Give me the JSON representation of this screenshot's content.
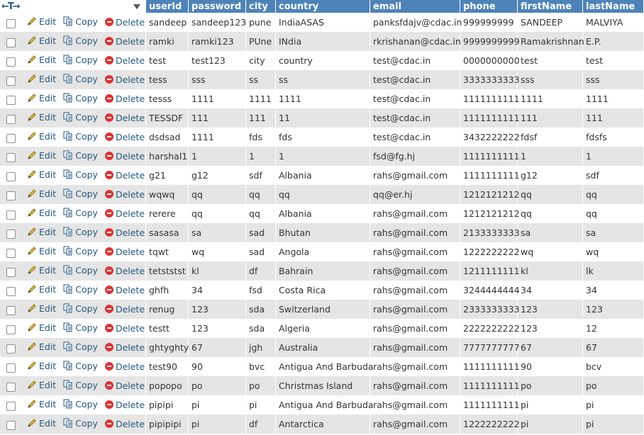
{
  "columns": [
    "userId",
    "password",
    "city",
    "country",
    "email",
    "phone",
    "firstName",
    "lastName"
  ],
  "actions": {
    "edit": "Edit",
    "copy": "Copy",
    "delete": "Delete"
  },
  "nav": {
    "arrows": "←T→"
  },
  "rows": [
    [
      "sandeep",
      "sandeep123",
      "pune",
      "IndiaASAS",
      "panksfdajv@cdac.in",
      "999999999",
      "SANDEEP",
      "MALVIYA"
    ],
    [
      "ramki",
      "ramki123",
      "PUne",
      "INdia",
      "rkrishanan@cdac.in",
      "9999999999",
      "Ramakrishnan",
      "E.P."
    ],
    [
      "test",
      "test123",
      "city",
      "country",
      "test@cdac.in",
      "0000000000",
      "test",
      "test"
    ],
    [
      "tess",
      "sss",
      "ss",
      "ss",
      "test@cdac.in",
      "3333333333",
      "sss",
      "sss"
    ],
    [
      "tesss",
      "1111",
      "1111",
      "1111",
      "test@cdac.in",
      "1111111111",
      "1111",
      "1111"
    ],
    [
      "TESSDF",
      "111",
      "111",
      "11",
      "test@cdac.in",
      "1111111111",
      "111",
      "111"
    ],
    [
      "dsdsad",
      "1111",
      "fds",
      "fds",
      "test@cdac.in",
      "3432222222",
      "fdsf",
      "fdsfs"
    ],
    [
      "harshal1",
      "1",
      "1",
      "1",
      "fsd@fg.hj",
      "1111111111",
      "1",
      "1"
    ],
    [
      "g21",
      "g12",
      "sdf",
      "Albania",
      "rahs@gmail.com",
      "1111111111",
      "g12",
      "sdf"
    ],
    [
      "wqwq",
      "qq",
      "qq",
      "qq",
      "qq@er.hj",
      "1212121212",
      "qq",
      "qq"
    ],
    [
      "rerere",
      "qq",
      "qq",
      "Albania",
      "rahs@gmail.com",
      "1212121212",
      "qq",
      "qq"
    ],
    [
      "sasasa",
      "sa",
      "sad",
      "Bhutan",
      "rahs@gmail.com",
      "2133333333",
      "sa",
      "sa"
    ],
    [
      "tqwt",
      "wq",
      "sad",
      "Angola",
      "rahs@gmail.com",
      "1222222222",
      "wq",
      "wq"
    ],
    [
      "tetststst",
      "kl",
      "df",
      "Bahrain",
      "rahs@gmail.com",
      "1211111111",
      "kl",
      "lk"
    ],
    [
      "ghfh",
      "34",
      "fsd",
      "Costa Rica",
      "rahs@gmail.com",
      "3244444444",
      "34",
      "34"
    ],
    [
      "renug",
      "123",
      "sda",
      "Switzerland",
      "rahs@gmail.com",
      "2333333333",
      "123",
      "123"
    ],
    [
      "testt",
      "123",
      "sda",
      "Algeria",
      "rahs@gmail.com",
      "2222222222",
      "123",
      "12"
    ],
    [
      "ghtyghty",
      "67",
      "jgh",
      "Australia",
      "rahs@gmail.com",
      "7777777777",
      "67",
      "67"
    ],
    [
      "test90",
      "90",
      "bvc",
      "Antigua And Barbuda",
      "rahs@gmail.com",
      "1111111111",
      "90",
      "bcv"
    ],
    [
      "popopo",
      "po",
      "po",
      "Christmas Island",
      "rahs@gmail.com",
      "1111111111",
      "po",
      "po"
    ],
    [
      "pipipi",
      "pi",
      "pi",
      "Antigua And Barbuda",
      "rahs@gmail.com",
      "1111111111",
      "pi",
      "pi"
    ],
    [
      "pipipipi",
      "pi",
      "df",
      "Antarctica",
      "rahs@gmail.com",
      "1222222222",
      "pi",
      "pi"
    ]
  ]
}
